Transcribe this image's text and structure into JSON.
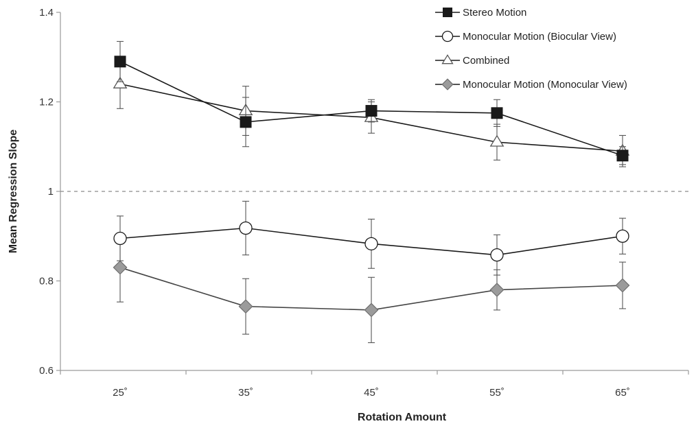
{
  "chart_data": {
    "type": "line",
    "xlabel": "Rotation Amount",
    "ylabel": "Mean Regression Slope",
    "categories": [
      "25˚",
      "35˚",
      "45˚",
      "55˚",
      "65˚"
    ],
    "ylim": [
      0.6,
      1.4
    ],
    "yticks": [
      "0.6",
      "0.8",
      "1",
      "1.2",
      "1.4"
    ],
    "reference_line": 1.0,
    "legend_position": "top-right",
    "grid": false,
    "series": [
      {
        "name": "Stereo Motion",
        "marker": "square-filled",
        "color": "#1a1a1a",
        "values": [
          1.29,
          1.155,
          1.18,
          1.175,
          1.08
        ],
        "errors": [
          0.045,
          0.055,
          0.025,
          0.03,
          0.02
        ]
      },
      {
        "name": "Monocular Motion (Biocular View)",
        "marker": "circle-open",
        "color": "#1a1a1a",
        "values": [
          0.895,
          0.918,
          0.883,
          0.858,
          0.9
        ],
        "errors": [
          0.05,
          0.06,
          0.055,
          0.045,
          0.04
        ]
      },
      {
        "name": "Combined",
        "marker": "triangle-open",
        "color": "#1a1a1a",
        "values": [
          1.24,
          1.18,
          1.165,
          1.11,
          1.09
        ],
        "errors": [
          0.055,
          0.055,
          0.035,
          0.04,
          0.035
        ]
      },
      {
        "name": "Monocular Motion (Monocular View)",
        "marker": "diamond-filled",
        "color": "#8c8c8c",
        "values": [
          0.83,
          0.743,
          0.735,
          0.78,
          0.79
        ],
        "errors": [
          0.077,
          0.062,
          0.073,
          0.045,
          0.052
        ]
      }
    ]
  }
}
